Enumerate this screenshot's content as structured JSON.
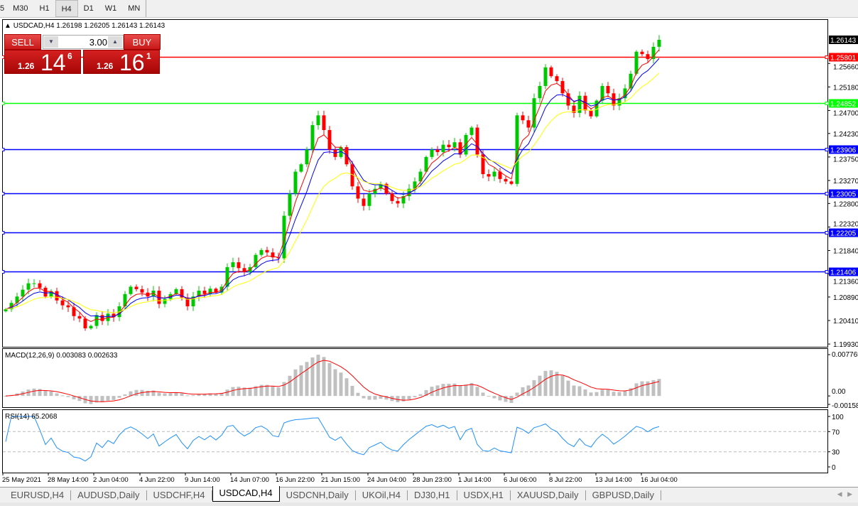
{
  "timeframes": [
    "5",
    "M30",
    "H1",
    "H4",
    "D1",
    "W1",
    "MN"
  ],
  "active_timeframe": "H4",
  "chart_header": {
    "symbol": "USDCAD,H4",
    "ohlc": "1.26198 1.26205 1.26143 1.26143"
  },
  "trade_panel": {
    "sell_label": "SELL",
    "buy_label": "BUY",
    "lot": "3.00",
    "sell_prefix": "1.26",
    "sell_big": "14",
    "sell_sup": "6",
    "buy_prefix": "1.26",
    "buy_big": "16",
    "buy_sup": "1",
    "down_icon": "▼",
    "up_icon": "▲"
  },
  "chart_data": {
    "type": "candlestick",
    "symbol": "USDCAD",
    "timeframe": "H4",
    "ylim": [
      1.1993,
      1.26143
    ],
    "y_ticks": [
      "1.25660",
      "1.25180",
      "1.24700",
      "1.24230",
      "1.23750",
      "1.23270",
      "1.22800",
      "1.22320",
      "1.21840",
      "1.21360",
      "1.20890",
      "1.20410",
      "1.19930"
    ],
    "current_price": "1.26143",
    "closes": [
      1.2064,
      1.2077,
      1.209,
      1.2104,
      1.2117,
      1.2117,
      1.2108,
      1.209,
      1.2101,
      1.2082,
      1.2072,
      1.2068,
      1.205,
      1.2045,
      1.2025,
      1.203,
      1.2052,
      1.204,
      1.2055,
      1.2048,
      1.207,
      1.2095,
      1.211,
      1.2105,
      1.2098,
      1.209,
      1.2102,
      1.2075,
      1.2085,
      1.2095,
      1.2105,
      1.2088,
      1.207,
      1.209,
      1.2102,
      1.2095,
      1.2106,
      1.2098,
      1.211,
      1.215,
      1.216,
      1.2148,
      1.214,
      1.215,
      1.2175,
      1.2185,
      1.218,
      1.217,
      1.2168,
      1.2255,
      1.23,
      1.2345,
      1.236,
      1.239,
      1.244,
      1.246,
      1.243,
      1.239,
      1.2375,
      1.2395,
      1.236,
      1.2315,
      1.229,
      1.2275,
      1.23,
      1.231,
      1.232,
      1.23,
      1.2285,
      1.228,
      1.2295,
      1.231,
      1.2325,
      1.2345,
      1.2375,
      1.239,
      1.2385,
      1.24,
      1.2395,
      1.2405,
      1.238,
      1.242,
      1.2435,
      1.238,
      1.234,
      1.2335,
      1.2345,
      1.233,
      1.2325,
      1.232,
      1.246,
      1.245,
      1.2435,
      1.2495,
      1.252,
      1.2558,
      1.254,
      1.253,
      1.2505,
      1.248,
      1.2465,
      1.25,
      1.247,
      1.2458,
      1.249,
      1.252,
      1.2505,
      1.248,
      1.2495,
      1.2515,
      1.2545,
      1.259,
      1.2585,
      1.2575,
      1.26,
      1.26143
    ],
    "hlines": [
      {
        "price": "1.25801",
        "color": "#ff0000"
      },
      {
        "price": "1.24852",
        "color": "#00ff00"
      },
      {
        "price": "1.23906",
        "color": "#0000ff"
      },
      {
        "price": "1.23005",
        "color": "#0000ff"
      },
      {
        "price": "1.22205",
        "color": "#0000ff"
      },
      {
        "price": "1.21406",
        "color": "#0000ff"
      }
    ],
    "colors": {
      "bull": "#00c800",
      "bear": "#ff0000",
      "ma_fast": "#ff0000",
      "ma_mid": "#0000ff",
      "ma_slow": "#ffff00",
      "macd_hist": "#c0c0c0",
      "macd_signal": "#ff0000",
      "rsi": "#1e90ff"
    },
    "x_ticks": [
      "25 May 2021",
      "28 May 14:00",
      "2 Jun 04:00",
      "4 Jun 22:00",
      "9 Jun 14:00",
      "14 Jun 07:00",
      "16 Jun 22:00",
      "21 Jun 15:00",
      "24 Jun 04:00",
      "28 Jun 23:00",
      "1 Jul 14:00",
      "6 Jul 06:00",
      "8 Jul 22:00",
      "13 Jul 14:00",
      "16 Jul 04:00"
    ],
    "macd": {
      "label": "MACD(12,26,9) 0.003083 0.002633",
      "y_ticks": [
        "0.007765",
        "0.00",
        "-0.001584"
      ],
      "ylim": [
        -0.001584,
        0.007765
      ]
    },
    "rsi": {
      "label": "RSI(14) 65.2068",
      "y_ticks": [
        "100",
        "70",
        "30",
        "0"
      ],
      "levels": [
        70,
        30
      ]
    }
  },
  "symbol_tabs": [
    "EURUSD,H4",
    "AUDUSD,Daily",
    "USDCHF,H4",
    "USDCAD,H4",
    "USDCNH,Daily",
    "UKOil,H4",
    "DJ30,H1",
    "USDX,H1",
    "XAUUSD,Daily",
    "GBPUSD,Daily"
  ],
  "active_tab": "USDCAD,H4",
  "tab_scroll": {
    "left": "◀",
    "right": "▶"
  }
}
